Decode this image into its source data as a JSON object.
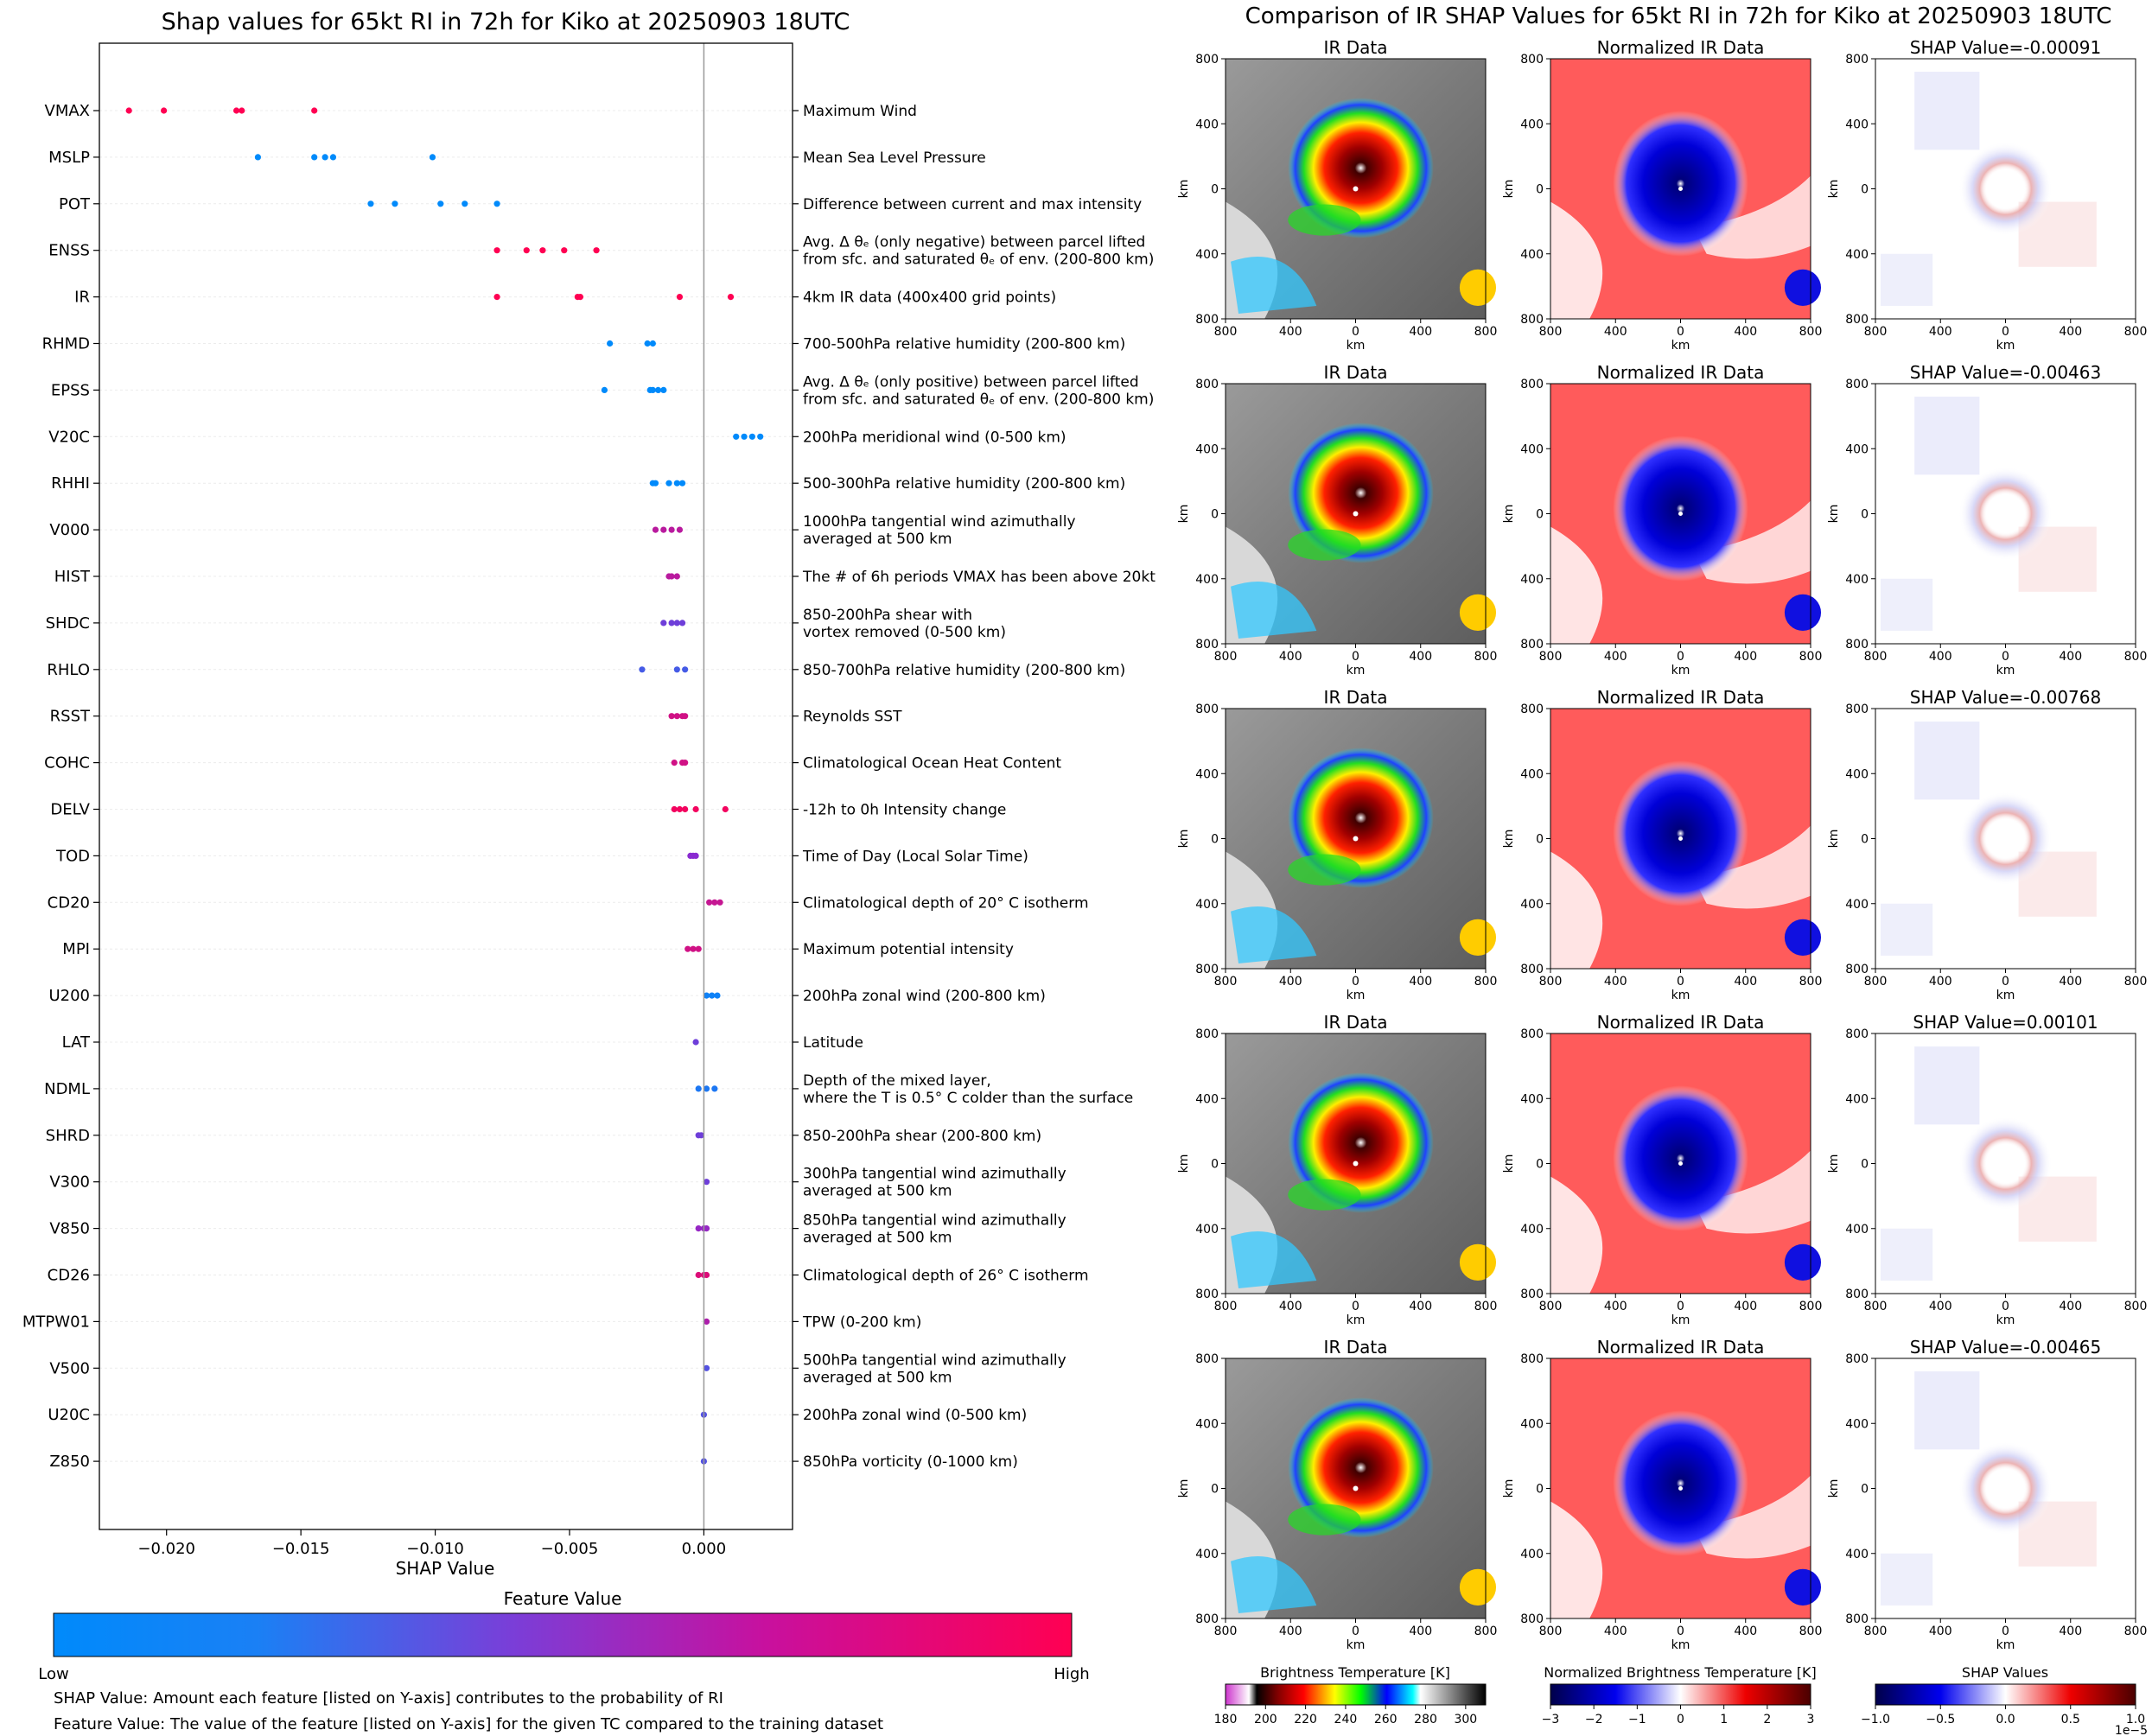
{
  "colors": {
    "low": "#008afb",
    "mid": "#8a2bd1",
    "high": "#ff0052",
    "eye_warm": "#ffffff",
    "norm_pos": "#ff5b5b",
    "norm_neg": "#1010e0",
    "shap_pos": "#f3c4c4",
    "shap_neg": "#c7c9f3"
  },
  "chart_data": [
    {
      "type": "scatter",
      "title": "Shap values for 65kt RI in 72h for Kiko at 20250903 18UTC",
      "xlabel": "SHAP Value",
      "xlim": [
        -0.0225,
        0.0033
      ],
      "xticks": [
        "−0.020",
        "−0.015",
        "−0.010",
        "−0.005",
        "0.000"
      ],
      "xtick_values": [
        -0.02,
        -0.015,
        -0.01,
        -0.005,
        0.0
      ],
      "features": [
        {
          "name": "VMAX",
          "desc": [
            "Maximum Wind"
          ],
          "fv": 1.0,
          "shap": [
            -0.0214,
            -0.0201,
            -0.0174,
            -0.0172,
            -0.0145
          ]
        },
        {
          "name": "MSLP",
          "desc": [
            "Mean Sea Level Pressure"
          ],
          "fv": 0.0,
          "shap": [
            -0.0166,
            -0.0145,
            -0.0141,
            -0.0138,
            -0.0101
          ]
        },
        {
          "name": "POT",
          "desc": [
            "Difference between current and max intensity"
          ],
          "fv": 0.0,
          "shap": [
            -0.0124,
            -0.0115,
            -0.0098,
            -0.0089,
            -0.0077
          ]
        },
        {
          "name": "ENSS",
          "desc": [
            "Avg. Δ θₑ (only negative) between parcel lifted",
            "from sfc. and saturated θₑ of env. (200-800 km)"
          ],
          "fv": 1.0,
          "shap": [
            -0.0077,
            -0.0066,
            -0.006,
            -0.0052,
            -0.004
          ]
        },
        {
          "name": "IR",
          "desc": [
            "4km IR data (400x400 grid points)"
          ],
          "fv": 1.0,
          "shap": [
            -0.0077,
            -0.0047,
            -0.0046,
            -0.0009,
            0.001
          ]
        },
        {
          "name": "RHMD",
          "desc": [
            "700-500hPa relative humidity (200-800 km)"
          ],
          "fv": 0.0,
          "shap": [
            -0.0035,
            -0.0021,
            -0.0019
          ]
        },
        {
          "name": "EPSS",
          "desc": [
            "Avg. Δ θₑ (only positive) between parcel lifted",
            "from sfc. and saturated θₑ of env. (200-800 km)"
          ],
          "fv": 0.0,
          "shap": [
            -0.0037,
            -0.002,
            -0.0019,
            -0.0017,
            -0.0015
          ]
        },
        {
          "name": "V20C",
          "desc": [
            "200hPa meridional wind (0-500 km)"
          ],
          "fv": 0.0,
          "shap": [
            0.0012,
            0.0015,
            0.0018,
            0.0021
          ]
        },
        {
          "name": "RHHI",
          "desc": [
            "500-300hPa relative humidity (200-800 km)"
          ],
          "fv": 0.0,
          "shap": [
            -0.0019,
            -0.0018,
            -0.0013,
            -0.001,
            -0.0008
          ]
        },
        {
          "name": "V000",
          "desc": [
            "1000hPa tangential wind azimuthally",
            "averaged at 500 km"
          ],
          "fv": 0.7,
          "shap": [
            -0.0018,
            -0.0015,
            -0.0012,
            -0.0009
          ]
        },
        {
          "name": "HIST",
          "desc": [
            "The # of 6h periods VMAX has been above 20kt"
          ],
          "fv": 0.7,
          "shap": [
            -0.0013,
            -0.0012,
            -0.001
          ]
        },
        {
          "name": "SHDC",
          "desc": [
            "850-200hPa shear with",
            "vortex removed (0-500 km)"
          ],
          "fv": 0.4,
          "shap": [
            -0.0015,
            -0.0012,
            -0.001,
            -0.0008
          ]
        },
        {
          "name": "RHLO",
          "desc": [
            "850-700hPa relative humidity (200-800 km)"
          ],
          "fv": 0.25,
          "shap": [
            -0.0023,
            -0.001,
            -0.0007
          ]
        },
        {
          "name": "RSST",
          "desc": [
            "Reynolds SST"
          ],
          "fv": 0.8,
          "shap": [
            -0.0012,
            -0.001,
            -0.0008,
            -0.0007
          ]
        },
        {
          "name": "COHC",
          "desc": [
            "Climatological Ocean Heat Content"
          ],
          "fv": 0.8,
          "shap": [
            -0.0011,
            -0.0008,
            -0.0007
          ]
        },
        {
          "name": "DELV",
          "desc": [
            "-12h to 0h Intensity change"
          ],
          "fv": 0.95,
          "shap": [
            -0.0011,
            -0.0009,
            -0.0007,
            -0.0003,
            0.0008
          ]
        },
        {
          "name": "TOD",
          "desc": [
            "Time of Day (Local Solar Time)"
          ],
          "fv": 0.5,
          "shap": [
            -0.0005,
            -0.0004,
            -0.0003
          ]
        },
        {
          "name": "CD20",
          "desc": [
            "Climatological depth of 20° C isotherm"
          ],
          "fv": 0.75,
          "shap": [
            0.0002,
            0.0004,
            0.0006
          ]
        },
        {
          "name": "MPI",
          "desc": [
            "Maximum potential intensity"
          ],
          "fv": 0.8,
          "shap": [
            -0.0006,
            -0.0004,
            -0.0002
          ]
        },
        {
          "name": "U200",
          "desc": [
            "200hPa zonal wind (200-800 km)"
          ],
          "fv": 0.05,
          "shap": [
            0.0001,
            0.0003,
            0.0005
          ]
        },
        {
          "name": "LAT",
          "desc": [
            "Latitude"
          ],
          "fv": 0.4,
          "shap": [
            -0.0003
          ]
        },
        {
          "name": "NDML",
          "desc": [
            "Depth of the mixed layer,",
            "where the T is 0.5° C colder than the surface"
          ],
          "fv": 0.1,
          "shap": [
            -0.0002,
            0.0001,
            0.0004
          ]
        },
        {
          "name": "SHRD",
          "desc": [
            "850-200hPa shear (200-800 km)"
          ],
          "fv": 0.4,
          "shap": [
            -0.0002,
            -0.0001
          ]
        },
        {
          "name": "V300",
          "desc": [
            "300hPa tangential wind azimuthally",
            "averaged at 500 km"
          ],
          "fv": 0.4,
          "shap": [
            0.0001
          ]
        },
        {
          "name": "V850",
          "desc": [
            "850hPa tangential wind azimuthally",
            "averaged at 500 km"
          ],
          "fv": 0.55,
          "shap": [
            -0.0002,
            0.0,
            0.0001
          ]
        },
        {
          "name": "CD26",
          "desc": [
            "Climatological depth of 26° C isotherm"
          ],
          "fv": 0.85,
          "shap": [
            -0.0002,
            0.0,
            0.0001
          ]
        },
        {
          "name": "MTPW01",
          "desc": [
            "TPW (0-200 km)"
          ],
          "fv": 0.65,
          "shap": [
            0.0001
          ]
        },
        {
          "name": "V500",
          "desc": [
            "500hPa tangential wind azimuthally",
            "averaged at 500 km"
          ],
          "fv": 0.3,
          "shap": [
            0.0001
          ]
        },
        {
          "name": "U20C",
          "desc": [
            "200hPa zonal wind (0-500 km)"
          ],
          "fv": 0.3,
          "shap": [
            0.0
          ]
        },
        {
          "name": "Z850",
          "desc": [
            "850hPa vorticity (0-1000 km)"
          ],
          "fv": 0.3,
          "shap": [
            0.0
          ]
        }
      ],
      "colorbar": {
        "title": "Feature Value",
        "low_label": "Low",
        "high_label": "High"
      }
    },
    {
      "type": "heatmap",
      "title": "Comparison of IR SHAP Values for 65kt RI in 72h for Kiko at 20250903 18UTC",
      "columns": [
        "IR Data",
        "Normalized IR Data"
      ],
      "shap_titles": [
        "SHAP Value=-0.00091",
        "SHAP Value=-0.00463",
        "SHAP Value=-0.00768",
        "SHAP Value=0.00101",
        "SHAP Value=-0.00465"
      ],
      "axis_label": "km",
      "axis_ticks": [
        "800",
        "400",
        "0",
        "400",
        "800"
      ],
      "colorbars": [
        {
          "title": "Brightness Temperature [K]",
          "ticks": [
            "180",
            "200",
            "220",
            "240",
            "260",
            "280",
            "300"
          ],
          "range": [
            180,
            310
          ]
        },
        {
          "title": "Normalized Brightness Temperature [K]",
          "ticks": [
            "−3",
            "−2",
            "−1",
            "0",
            "1",
            "2",
            "3"
          ],
          "range": [
            -3,
            3
          ]
        },
        {
          "title": "SHAP Values",
          "ticks": [
            "−1.0",
            "−0.5",
            "0.0",
            "0.5",
            "1.0"
          ],
          "range": [
            -1,
            1
          ],
          "offset_label": "1e−5"
        }
      ]
    }
  ],
  "notes": {
    "shap_value": "SHAP Value: Amount each feature [listed on Y-axis] contributes to the probability of RI",
    "feature_value": "Feature Value: The value of the feature [listed on Y-axis] for the given TC compared to the training dataset"
  }
}
